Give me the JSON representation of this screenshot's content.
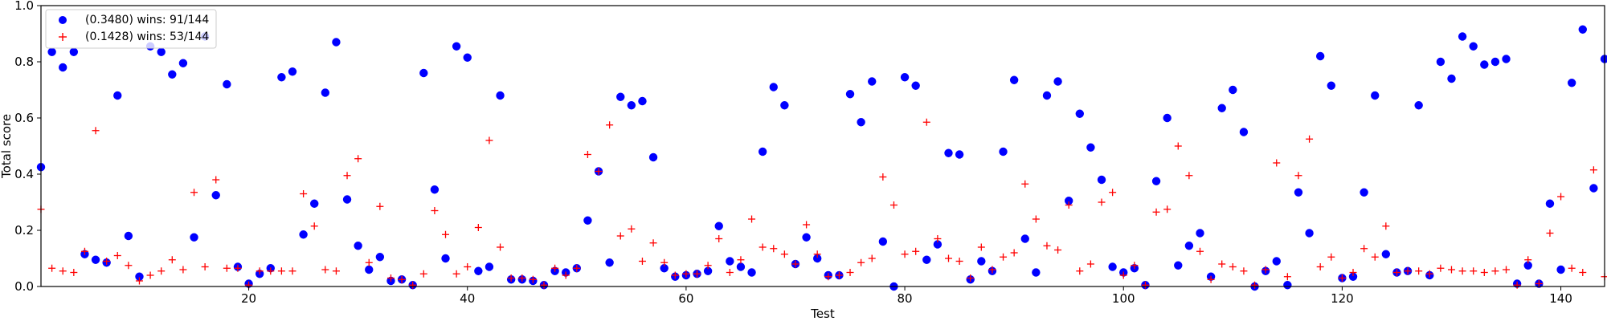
{
  "chart_data": {
    "type": "scatter",
    "title": "",
    "xlabel": "Test",
    "ylabel": "Total score",
    "xlim": [
      1,
      144
    ],
    "ylim": [
      0,
      1.0
    ],
    "xticks": [
      20,
      40,
      60,
      80,
      100,
      120,
      140
    ],
    "yticks": [
      0.0,
      0.2,
      0.4,
      0.6,
      0.8,
      1.0
    ],
    "xtick_labels": [
      "20",
      "40",
      "60",
      "80",
      "100",
      "120",
      "140"
    ],
    "ytick_labels": [
      "0.0",
      "0.2",
      "0.4",
      "0.6",
      "0.8",
      "1.0"
    ],
    "grid": false,
    "legend_position": "top-left",
    "series": [
      {
        "name": "(0.3480) wins: 91/144",
        "marker": "circle",
        "color": "#0000ff",
        "x": [
          1,
          2,
          3,
          4,
          5,
          6,
          7,
          8,
          9,
          10,
          11,
          12,
          13,
          14,
          15,
          16,
          17,
          18,
          19,
          20,
          21,
          22,
          23,
          24,
          25,
          26,
          27,
          28,
          29,
          30,
          31,
          32,
          33,
          34,
          35,
          36,
          37,
          38,
          39,
          40,
          41,
          42,
          43,
          44,
          45,
          46,
          47,
          48,
          49,
          50,
          51,
          52,
          53,
          54,
          55,
          56,
          57,
          58,
          59,
          60,
          61,
          62,
          63,
          64,
          65,
          66,
          67,
          68,
          69,
          70,
          71,
          72,
          73,
          74,
          75,
          76,
          77,
          78,
          79,
          80,
          81,
          82,
          83,
          84,
          85,
          86,
          87,
          88,
          89,
          90,
          91,
          92,
          93,
          94,
          95,
          96,
          97,
          98,
          99,
          100,
          101,
          102,
          103,
          104,
          105,
          106,
          107,
          108,
          109,
          110,
          111,
          112,
          113,
          114,
          115,
          116,
          117,
          118,
          119,
          120,
          121,
          122,
          123,
          124,
          125,
          126,
          127,
          128,
          129,
          130,
          131,
          132,
          133,
          134,
          135,
          136,
          137,
          138,
          139,
          140,
          141,
          142,
          143,
          144
        ],
        "y": [
          0.425,
          0.835,
          0.78,
          0.835,
          0.115,
          0.095,
          0.085,
          0.68,
          0.18,
          0.035,
          0.855,
          0.835,
          0.755,
          0.795,
          0.175,
          0.89,
          0.325,
          0.72,
          0.07,
          0.01,
          0.045,
          0.065,
          0.745,
          0.765,
          0.185,
          0.295,
          0.69,
          0.87,
          0.31,
          0.145,
          0.06,
          0.105,
          0.02,
          0.025,
          0.005,
          0.76,
          0.345,
          0.1,
          0.855,
          0.815,
          0.055,
          0.07,
          0.68,
          0.025,
          0.025,
          0.02,
          0.005,
          0.055,
          0.05,
          0.065,
          0.235,
          0.41,
          0.085,
          0.675,
          0.645,
          0.66,
          0.46,
          0.065,
          0.035,
          0.04,
          0.045,
          0.055,
          0.215,
          0.09,
          0.07,
          0.05,
          0.48,
          0.71,
          0.645,
          0.08,
          0.175,
          0.1,
          0.04,
          0.04,
          0.685,
          0.585,
          0.73,
          0.16,
          0.0,
          0.745,
          0.715,
          0.095,
          0.15,
          0.475,
          0.47,
          0.025,
          0.09,
          0.055,
          0.48,
          0.735,
          0.17,
          0.05,
          0.68,
          0.73,
          0.305,
          0.615,
          0.495,
          0.38,
          0.07,
          0.05,
          0.065,
          0.005,
          0.375,
          0.6,
          0.075,
          0.145,
          0.19,
          0.035,
          0.635,
          0.7,
          0.55,
          0.0,
          0.055,
          0.09,
          0.005,
          0.335,
          0.19,
          0.82,
          0.715,
          0.03,
          0.035,
          0.335,
          0.68,
          0.115,
          0.05,
          0.055,
          0.645,
          0.04,
          0.8,
          0.74,
          0.89,
          0.855,
          0.79,
          0.8,
          0.81,
          0.01,
          0.075,
          0.01,
          0.295,
          0.06,
          0.725,
          0.915,
          0.35,
          0.81
        ]
      },
      {
        "name": "(0.1428) wins: 53/144",
        "marker": "plus",
        "color": "#ff0000",
        "x": [
          1,
          2,
          3,
          4,
          5,
          6,
          7,
          8,
          9,
          10,
          11,
          12,
          13,
          14,
          15,
          16,
          17,
          18,
          19,
          20,
          21,
          22,
          23,
          24,
          25,
          26,
          27,
          28,
          29,
          30,
          31,
          32,
          33,
          34,
          35,
          36,
          37,
          38,
          39,
          40,
          41,
          42,
          43,
          44,
          45,
          46,
          47,
          48,
          49,
          50,
          51,
          52,
          53,
          54,
          55,
          56,
          57,
          58,
          59,
          60,
          61,
          62,
          63,
          64,
          65,
          66,
          67,
          68,
          69,
          70,
          71,
          72,
          73,
          74,
          75,
          76,
          77,
          78,
          79,
          80,
          81,
          82,
          83,
          84,
          85,
          86,
          87,
          88,
          89,
          90,
          91,
          92,
          93,
          94,
          95,
          96,
          97,
          98,
          99,
          100,
          101,
          102,
          103,
          104,
          105,
          106,
          107,
          108,
          109,
          110,
          111,
          112,
          113,
          114,
          115,
          116,
          117,
          118,
          119,
          120,
          121,
          122,
          123,
          124,
          125,
          126,
          127,
          128,
          129,
          130,
          131,
          132,
          133,
          134,
          135,
          136,
          137,
          138,
          139,
          140,
          141,
          142,
          143,
          144
        ],
        "y": [
          0.275,
          0.065,
          0.055,
          0.05,
          0.125,
          0.555,
          0.09,
          0.11,
          0.075,
          0.02,
          0.04,
          0.055,
          0.095,
          0.06,
          0.335,
          0.07,
          0.38,
          0.065,
          0.065,
          0.005,
          0.055,
          0.055,
          0.055,
          0.055,
          0.33,
          0.215,
          0.06,
          0.055,
          0.395,
          0.455,
          0.085,
          0.285,
          0.03,
          0.025,
          0.005,
          0.045,
          0.27,
          0.185,
          0.045,
          0.07,
          0.21,
          0.52,
          0.14,
          0.03,
          0.03,
          0.025,
          0.005,
          0.065,
          0.04,
          0.065,
          0.47,
          0.41,
          0.575,
          0.18,
          0.205,
          0.09,
          0.155,
          0.085,
          0.04,
          0.045,
          0.045,
          0.075,
          0.17,
          0.05,
          0.095,
          0.24,
          0.14,
          0.135,
          0.115,
          0.08,
          0.22,
          0.115,
          0.035,
          0.04,
          0.05,
          0.085,
          0.1,
          0.39,
          0.29,
          0.115,
          0.125,
          0.585,
          0.17,
          0.1,
          0.09,
          0.03,
          0.14,
          0.06,
          0.105,
          0.12,
          0.365,
          0.24,
          0.145,
          0.13,
          0.29,
          0.055,
          0.08,
          0.3,
          0.335,
          0.04,
          0.075,
          0.005,
          0.265,
          0.275,
          0.5,
          0.395,
          0.125,
          0.025,
          0.08,
          0.07,
          0.055,
          0.005,
          0.06,
          0.44,
          0.035,
          0.395,
          0.525,
          0.07,
          0.105,
          0.03,
          0.05,
          0.135,
          0.105,
          0.215,
          0.05,
          0.055,
          0.055,
          0.045,
          0.065,
          0.06,
          0.055,
          0.055,
          0.05,
          0.055,
          0.06,
          0.005,
          0.095,
          0.01,
          0.19,
          0.32,
          0.065,
          0.05,
          0.415,
          0.035
        ]
      }
    ]
  }
}
